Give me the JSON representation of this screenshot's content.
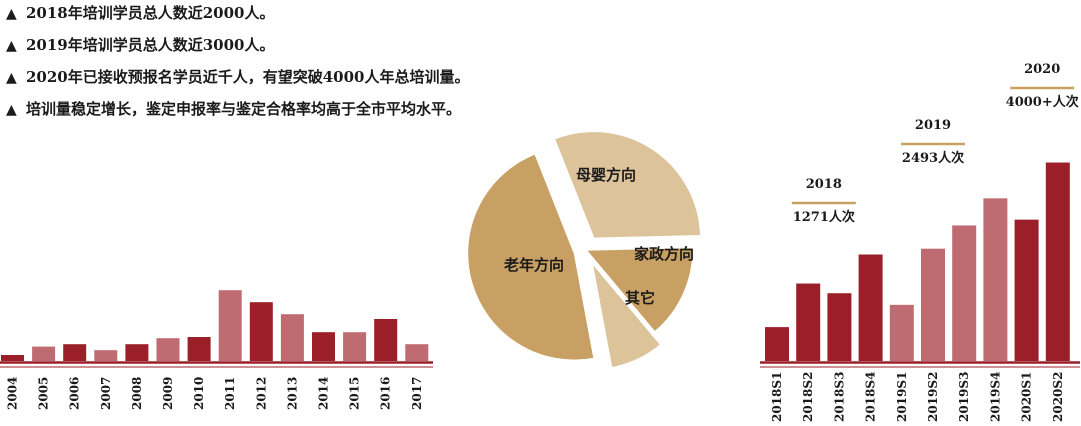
{
  "bullets": [
    "2018年培训学员总人数近2000人。",
    "2019年培训学员总人数近3000人。",
    "2020年已接收预报名学员近千人，有望突破4000人年总培训量。",
    "培训量稳定增长，鉴定申报率与鉴定合格率均高于全市平均水平。"
  ],
  "bullet_marker": "▲",
  "colors": {
    "dark": "#9b1f28",
    "light": "#bf6b72",
    "tan": "#c9a063",
    "tan_light": "#dcc39a",
    "rule": "#c9a063"
  },
  "chart_data": [
    {
      "type": "bar",
      "title": "",
      "categories": [
        "2004",
        "2005",
        "2006",
        "2007",
        "2008",
        "2009",
        "2010",
        "2011",
        "2012",
        "2013",
        "2014",
        "2015",
        "2016",
        "2017"
      ],
      "values": [
        5,
        12,
        14,
        9,
        14,
        19,
        20,
        59,
        49,
        39,
        24,
        24,
        35,
        14
      ],
      "shade": [
        "dark",
        "light",
        "dark",
        "light",
        "dark",
        "light",
        "dark",
        "light",
        "dark",
        "light",
        "dark",
        "light",
        "dark",
        "light"
      ],
      "ylim": [
        0,
        70
      ],
      "grid": false
    },
    {
      "type": "pie",
      "slices": [
        {
          "label": "母婴方向",
          "value": 30,
          "color": "tan_light",
          "exploded": true
        },
        {
          "label": "家政方向",
          "value": 14,
          "color": "tan",
          "exploded": false
        },
        {
          "label": "其它",
          "value": 8,
          "color": "tan_light",
          "exploded": true
        },
        {
          "label": "老年方向",
          "value": 46,
          "color": "tan",
          "exploded": true
        }
      ]
    },
    {
      "type": "bar",
      "title": "",
      "categories": [
        "2018S1",
        "2018S2",
        "2018S3",
        "2018S4",
        "2019S1",
        "2019S2",
        "2019S3",
        "2019S4",
        "2020S1",
        "2020S2"
      ],
      "values": [
        35,
        80,
        70,
        110,
        58,
        116,
        140,
        168,
        146,
        205
      ],
      "shade": [
        "dark",
        "dark",
        "dark",
        "dark",
        "light",
        "light",
        "light",
        "light",
        "dark",
        "dark"
      ],
      "ylim": [
        0,
        220
      ],
      "annotations": [
        {
          "year": "2018",
          "text": "1271人次",
          "start": 1,
          "end": 2
        },
        {
          "year": "2019",
          "text": "2493人次",
          "start": 4,
          "end": 6
        },
        {
          "year": "2020",
          "text": "4000+人次",
          "start": 8,
          "end": 9
        }
      ]
    }
  ]
}
